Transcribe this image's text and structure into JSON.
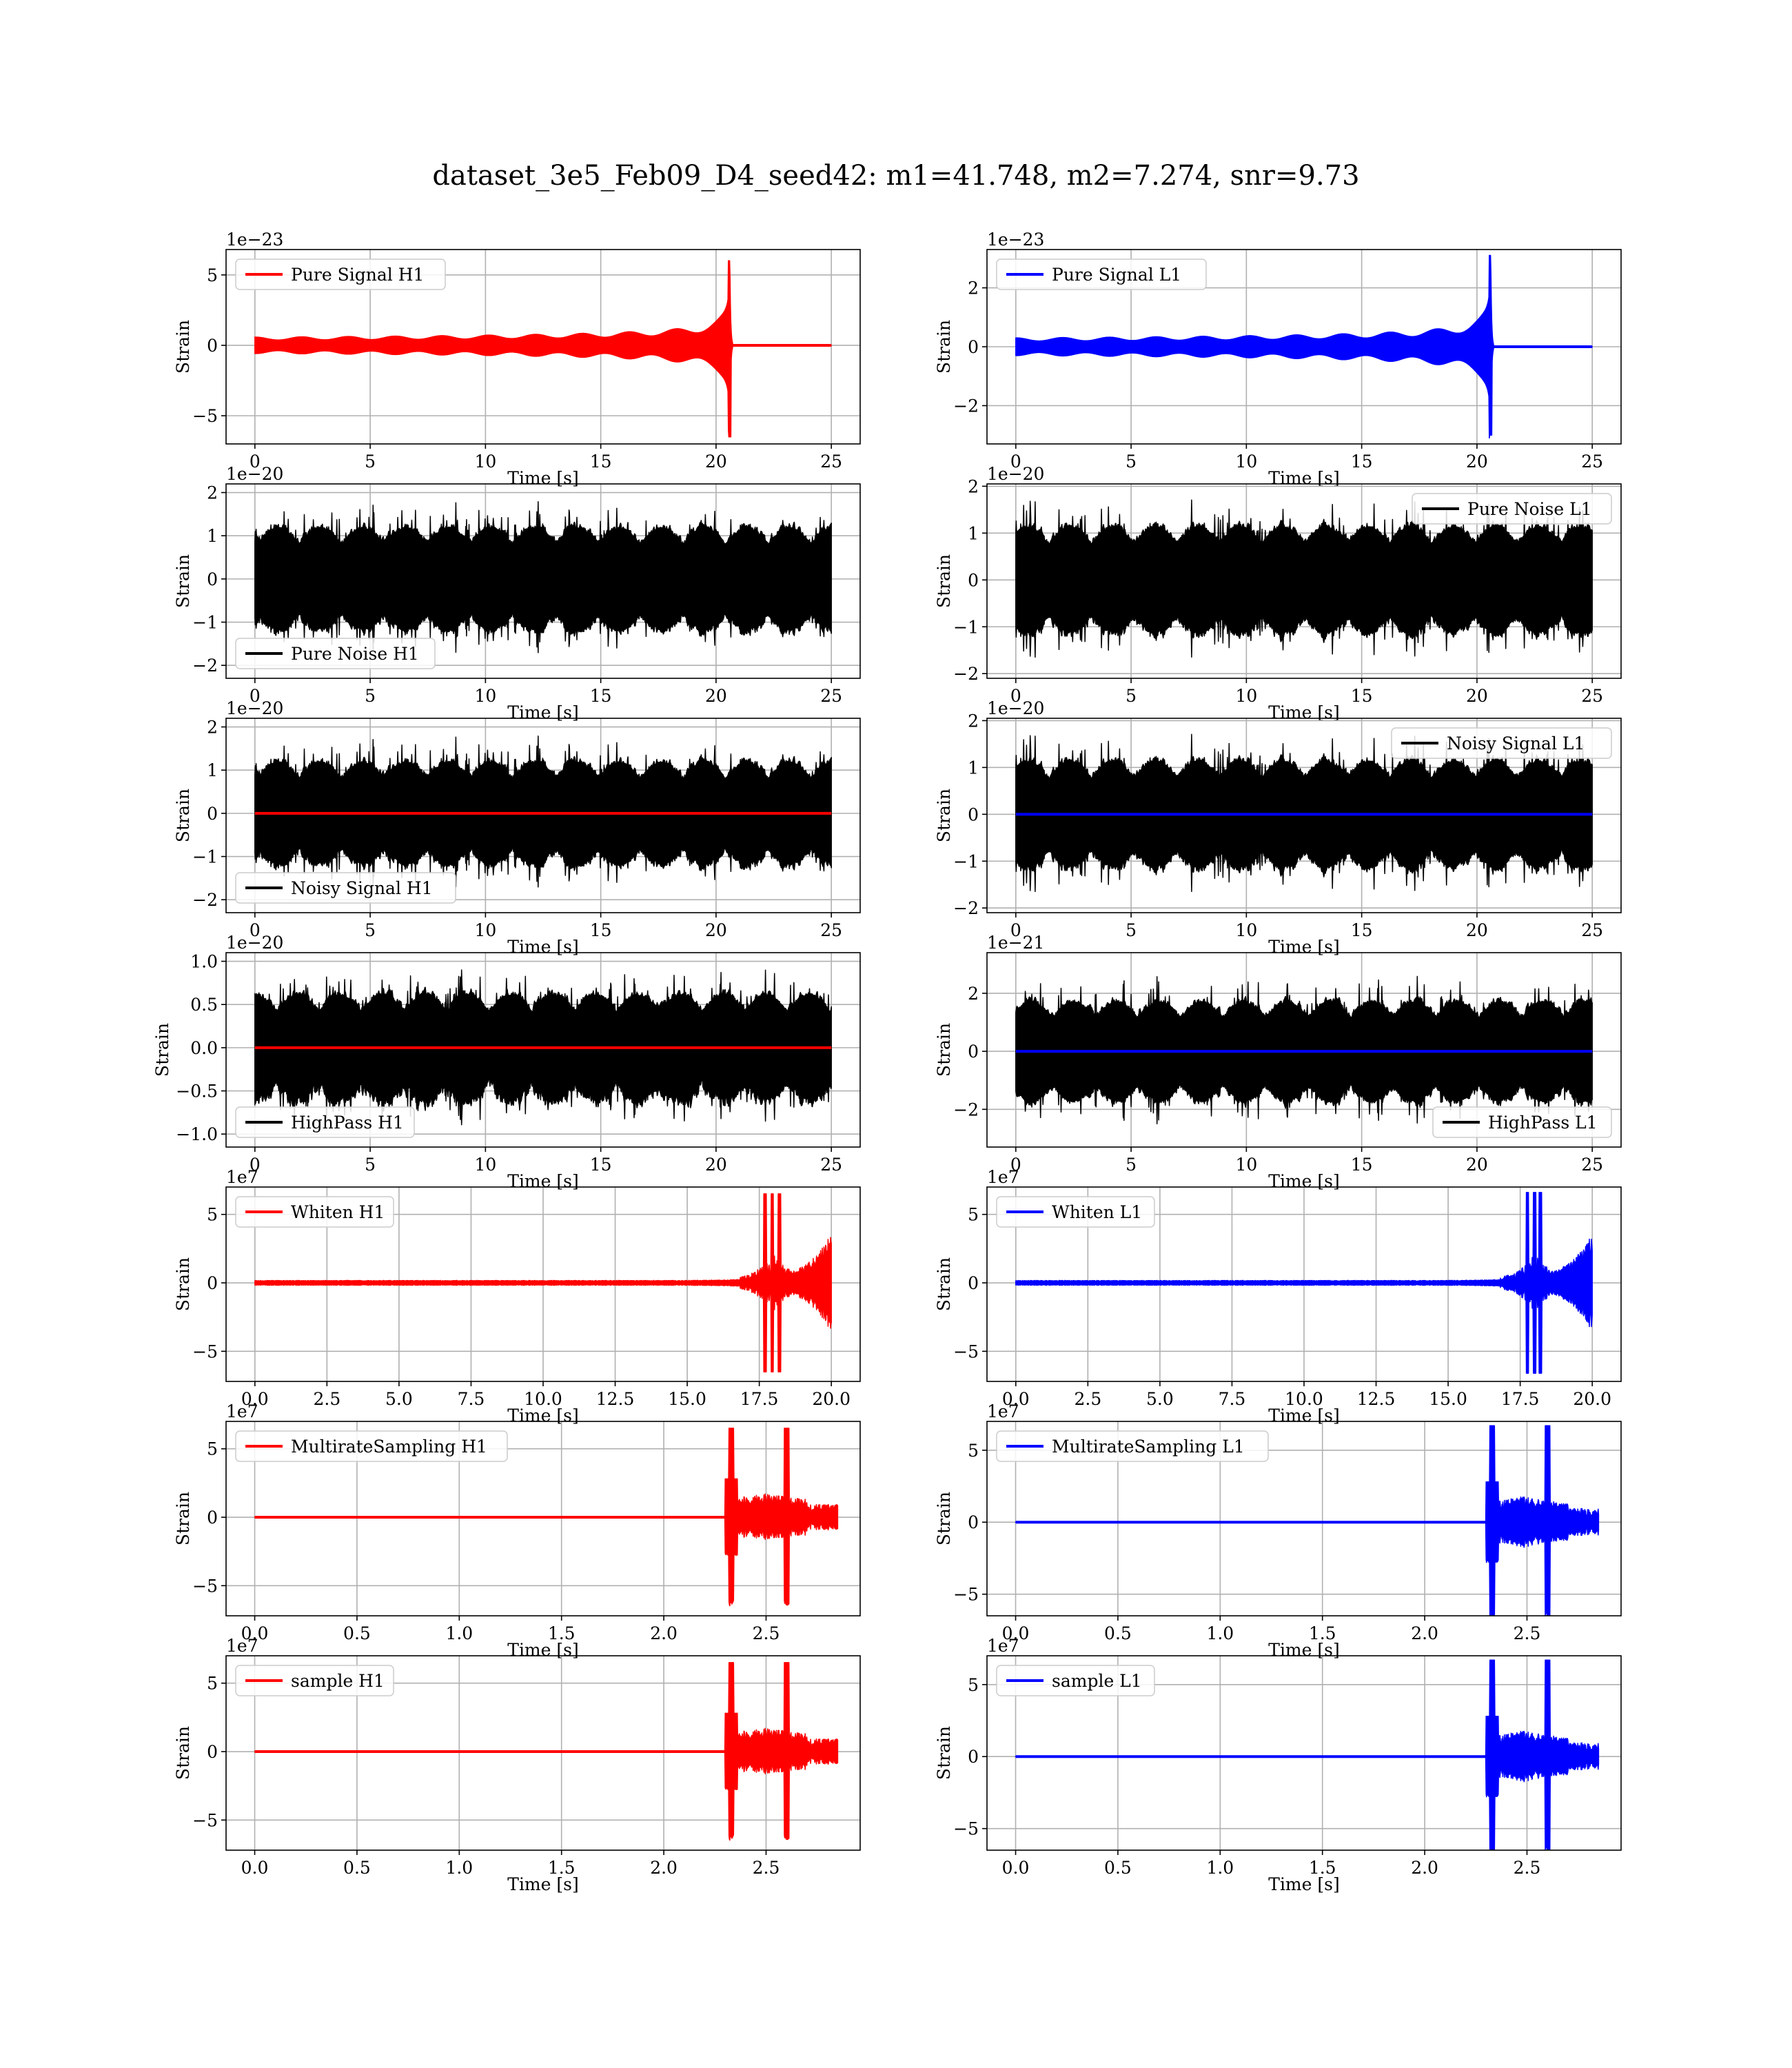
{
  "figure": {
    "title": "dataset_3e5_Feb09_D4_seed42: m1=41.748, m2=7.274, snr=9.73"
  },
  "colors": {
    "h1": "#ff0000",
    "l1": "#0000ff",
    "noise": "#000000",
    "grid": "#b0b0b0"
  },
  "chart_data": [
    {
      "id": "ps-h1",
      "type": "line",
      "row": 0,
      "col": 0,
      "xlabel": "Time [s]",
      "ylabel": "Strain",
      "exponent": "1e−23",
      "xlim": [
        -1.25,
        26.25
      ],
      "ylim": [
        -7.0,
        6.8
      ],
      "xticks": [
        0,
        5,
        10,
        15,
        20,
        25
      ],
      "xtick_labels": [
        "0",
        "5",
        "10",
        "15",
        "20",
        "25"
      ],
      "yticks": [
        -5,
        0,
        5
      ],
      "ytick_labels": [
        "−5",
        "0",
        "5"
      ],
      "legend_position": "upper-left",
      "series": [
        {
          "name": "Pure Signal H1",
          "color": "#ff0000",
          "kind": "chirp",
          "x0": 0,
          "x1": 25,
          "merger": 20.6,
          "peak": 6.0,
          "minv": -6.5
        }
      ]
    },
    {
      "id": "ps-l1",
      "type": "line",
      "row": 0,
      "col": 1,
      "xlabel": "Time [s]",
      "ylabel": "Strain",
      "exponent": "1e−23",
      "xlim": [
        -1.25,
        26.25
      ],
      "ylim": [
        -3.3,
        3.3
      ],
      "xticks": [
        0,
        5,
        10,
        15,
        20,
        25
      ],
      "xtick_labels": [
        "0",
        "5",
        "10",
        "15",
        "20",
        "25"
      ],
      "yticks": [
        -2,
        0,
        2
      ],
      "ytick_labels": [
        "−2",
        "0",
        "2"
      ],
      "legend_position": "upper-left",
      "series": [
        {
          "name": "Pure Signal L1",
          "color": "#0000ff",
          "kind": "chirp",
          "x0": 0,
          "x1": 25,
          "merger": 20.6,
          "peak": 3.1,
          "minv": -3.0
        }
      ]
    },
    {
      "id": "pn-h1",
      "type": "line",
      "row": 1,
      "col": 0,
      "xlabel": "Time [s]",
      "ylabel": "Strain",
      "exponent": "1e−20",
      "xlim": [
        -1.25,
        26.25
      ],
      "ylim": [
        -2.3,
        2.2
      ],
      "xticks": [
        0,
        5,
        10,
        15,
        20,
        25
      ],
      "xtick_labels": [
        "0",
        "5",
        "10",
        "15",
        "20",
        "25"
      ],
      "yticks": [
        -2,
        -1,
        0,
        1,
        2
      ],
      "ytick_labels": [
        "−2",
        "−1",
        "0",
        "1",
        "2"
      ],
      "legend_position": "lower-left",
      "series": [
        {
          "name": "Pure Noise H1",
          "color": "#000000",
          "kind": "noise",
          "x0": 0,
          "x1": 25,
          "amp": 1.25,
          "seed": 3
        }
      ]
    },
    {
      "id": "pn-l1",
      "type": "line",
      "row": 1,
      "col": 1,
      "xlabel": "Time [s]",
      "ylabel": "Strain",
      "exponent": "1e−20",
      "xlim": [
        -1.25,
        26.25
      ],
      "ylim": [
        -2.1,
        2.05
      ],
      "xticks": [
        0,
        5,
        10,
        15,
        20,
        25
      ],
      "xtick_labels": [
        "0",
        "5",
        "10",
        "15",
        "20",
        "25"
      ],
      "yticks": [
        -2,
        -1,
        0,
        1,
        2
      ],
      "ytick_labels": [
        "−2",
        "−1",
        "0",
        "1",
        "2"
      ],
      "legend_position": "upper-right",
      "series": [
        {
          "name": "Pure Noise L1",
          "color": "#000000",
          "kind": "noise",
          "x0": 0,
          "x1": 25,
          "amp": 1.2,
          "seed": 7
        }
      ]
    },
    {
      "id": "ns-h1",
      "type": "line",
      "row": 2,
      "col": 0,
      "xlabel": "Time [s]",
      "ylabel": "Strain",
      "exponent": "1e−20",
      "xlim": [
        -1.25,
        26.25
      ],
      "ylim": [
        -2.3,
        2.2
      ],
      "xticks": [
        0,
        5,
        10,
        15,
        20,
        25
      ],
      "xtick_labels": [
        "0",
        "5",
        "10",
        "15",
        "20",
        "25"
      ],
      "yticks": [
        -2,
        -1,
        0,
        1,
        2
      ],
      "ytick_labels": [
        "−2",
        "−1",
        "0",
        "1",
        "2"
      ],
      "legend_position": "lower-left",
      "series": [
        {
          "name": "Noisy Signal H1",
          "color": "#000000",
          "kind": "noise",
          "x0": 0,
          "x1": 25,
          "amp": 1.25,
          "seed": 3
        },
        {
          "name": "",
          "color": "#ff0000",
          "kind": "flat",
          "x0": 0,
          "x1": 25
        }
      ]
    },
    {
      "id": "ns-l1",
      "type": "line",
      "row": 2,
      "col": 1,
      "xlabel": "Time [s]",
      "ylabel": "Strain",
      "exponent": "1e−20",
      "xlim": [
        -1.25,
        26.25
      ],
      "ylim": [
        -2.1,
        2.05
      ],
      "xticks": [
        0,
        5,
        10,
        15,
        20,
        25
      ],
      "xtick_labels": [
        "0",
        "5",
        "10",
        "15",
        "20",
        "25"
      ],
      "yticks": [
        -2,
        -1,
        0,
        1,
        2
      ],
      "ytick_labels": [
        "−2",
        "−1",
        "0",
        "1",
        "2"
      ],
      "legend_position": "upper-right",
      "series": [
        {
          "name": "Noisy Signal L1",
          "color": "#000000",
          "kind": "noise",
          "x0": 0,
          "x1": 25,
          "amp": 1.2,
          "seed": 7
        },
        {
          "name": "",
          "color": "#0000ff",
          "kind": "flat",
          "x0": 0,
          "x1": 25
        }
      ]
    },
    {
      "id": "hp-h1",
      "type": "line",
      "row": 3,
      "col": 0,
      "xlabel": "Time [s]",
      "ylabel": "Strain",
      "exponent": "1e−20",
      "xlim": [
        -1.25,
        26.25
      ],
      "ylim": [
        -1.15,
        1.1
      ],
      "xticks": [
        0,
        5,
        10,
        15,
        20,
        25
      ],
      "xtick_labels": [
        "0",
        "5",
        "10",
        "15",
        "20",
        "25"
      ],
      "yticks": [
        -1.0,
        -0.5,
        0.0,
        0.5,
        1.0
      ],
      "ytick_labels": [
        "−1.0",
        "−0.5",
        "0.0",
        "0.5",
        "1.0"
      ],
      "legend_position": "lower-left",
      "series": [
        {
          "name": "HighPass H1",
          "color": "#000000",
          "kind": "noise",
          "x0": 0,
          "x1": 25,
          "amp": 0.65,
          "seed": 11
        },
        {
          "name": "",
          "color": "#ff0000",
          "kind": "flat",
          "x0": 0,
          "x1": 25
        }
      ]
    },
    {
      "id": "hp-l1",
      "type": "line",
      "row": 3,
      "col": 1,
      "xlabel": "Time [s]",
      "ylabel": "Strain",
      "exponent": "1e−21",
      "xlim": [
        -1.25,
        26.25
      ],
      "ylim": [
        -3.3,
        3.4
      ],
      "xticks": [
        0,
        5,
        10,
        15,
        20,
        25
      ],
      "xtick_labels": [
        "0",
        "5",
        "10",
        "15",
        "20",
        "25"
      ],
      "yticks": [
        -2,
        0,
        2
      ],
      "ytick_labels": [
        "−2",
        "0",
        "2"
      ],
      "legend_position": "lower-right",
      "series": [
        {
          "name": "HighPass L1",
          "color": "#000000",
          "kind": "noise",
          "x0": 0,
          "x1": 25,
          "amp": 1.8,
          "seed": 13
        },
        {
          "name": "",
          "color": "#0000ff",
          "kind": "flat",
          "x0": 0,
          "x1": 25
        }
      ]
    },
    {
      "id": "wh-h1",
      "type": "line",
      "row": 4,
      "col": 0,
      "xlabel": "Time [s]",
      "ylabel": "Strain",
      "exponent": "1e7",
      "xlim": [
        -1.0,
        21.0
      ],
      "ylim": [
        -7.2,
        7.0
      ],
      "xticks": [
        0,
        2.5,
        5,
        7.5,
        10,
        12.5,
        15,
        17.5,
        20
      ],
      "xtick_labels": [
        "0.0",
        "2.5",
        "5.0",
        "7.5",
        "10.0",
        "12.5",
        "15.0",
        "17.5",
        "20.0"
      ],
      "yticks": [
        -5,
        0,
        5
      ],
      "ytick_labels": [
        "−5",
        "0",
        "5"
      ],
      "legend_position": "upper-left",
      "series": [
        {
          "name": "Whiten H1",
          "color": "#ff0000",
          "kind": "whiten",
          "x0": 0,
          "x1": 20,
          "peaks": [
            17.7,
            17.95,
            18.2
          ],
          "peak": 6.5,
          "seed": 17
        }
      ]
    },
    {
      "id": "wh-l1",
      "type": "line",
      "row": 4,
      "col": 1,
      "xlabel": "Time [s]",
      "ylabel": "Strain",
      "exponent": "1e7",
      "xlim": [
        -1.0,
        21.0
      ],
      "ylim": [
        -7.2,
        7.0
      ],
      "xticks": [
        0,
        2.5,
        5,
        7.5,
        10,
        12.5,
        15,
        17.5,
        20
      ],
      "xtick_labels": [
        "0.0",
        "2.5",
        "5.0",
        "7.5",
        "10.0",
        "12.5",
        "15.0",
        "17.5",
        "20.0"
      ],
      "yticks": [
        -5,
        0,
        5
      ],
      "ytick_labels": [
        "−5",
        "0",
        "5"
      ],
      "legend_position": "upper-left",
      "series": [
        {
          "name": "Whiten L1",
          "color": "#0000ff",
          "kind": "whiten",
          "x0": 0,
          "x1": 20,
          "peaks": [
            17.75,
            18.0,
            18.2
          ],
          "peak": 6.6,
          "seed": 19
        }
      ]
    },
    {
      "id": "ms-h1",
      "type": "line",
      "row": 5,
      "col": 0,
      "xlabel": "Time [s]",
      "ylabel": "Strain",
      "exponent": "1e7",
      "xlim": [
        -0.14,
        2.96
      ],
      "ylim": [
        -7.2,
        7.0
      ],
      "xticks": [
        0,
        0.5,
        1.0,
        1.5,
        2.0,
        2.5
      ],
      "xtick_labels": [
        "0.0",
        "0.5",
        "1.0",
        "1.5",
        "2.0",
        "2.5"
      ],
      "yticks": [
        -5,
        0,
        5
      ],
      "ytick_labels": [
        "−5",
        "0",
        "5"
      ],
      "legend_position": "upper-left",
      "series": [
        {
          "name": "MultirateSampling H1",
          "color": "#ff0000",
          "kind": "multirate",
          "x0": 0,
          "x1": 2.85,
          "burst0": 2.3,
          "peaks": [
            2.33,
            2.6
          ],
          "peak": 6.5,
          "seed": 23
        }
      ]
    },
    {
      "id": "ms-l1",
      "type": "line",
      "row": 5,
      "col": 1,
      "xlabel": "Time [s]",
      "ylabel": "Strain",
      "exponent": "1e7",
      "xlim": [
        -0.14,
        2.96
      ],
      "ylim": [
        -6.5,
        7.0
      ],
      "xticks": [
        0,
        0.5,
        1.0,
        1.5,
        2.0,
        2.5
      ],
      "xtick_labels": [
        "0.0",
        "0.5",
        "1.0",
        "1.5",
        "2.0",
        "2.5"
      ],
      "yticks": [
        -5,
        0,
        5
      ],
      "ytick_labels": [
        "−5",
        "0",
        "5"
      ],
      "legend_position": "upper-left",
      "series": [
        {
          "name": "MultirateSampling L1",
          "color": "#0000ff",
          "kind": "multirate",
          "x0": 0,
          "x1": 2.85,
          "burst0": 2.3,
          "peaks": [
            2.33,
            2.6
          ],
          "peak": 6.7,
          "seed": 29
        }
      ]
    },
    {
      "id": "sa-h1",
      "type": "line",
      "row": 6,
      "col": 0,
      "xlabel": "Time [s]",
      "ylabel": "Strain",
      "exponent": "1e7",
      "xlim": [
        -0.14,
        2.96
      ],
      "ylim": [
        -7.2,
        7.0
      ],
      "xticks": [
        0,
        0.5,
        1.0,
        1.5,
        2.0,
        2.5
      ],
      "xtick_labels": [
        "0.0",
        "0.5",
        "1.0",
        "1.5",
        "2.0",
        "2.5"
      ],
      "yticks": [
        -5,
        0,
        5
      ],
      "ytick_labels": [
        "−5",
        "0",
        "5"
      ],
      "legend_position": "upper-left",
      "series": [
        {
          "name": "sample H1",
          "color": "#ff0000",
          "kind": "multirate",
          "x0": 0,
          "x1": 2.85,
          "burst0": 2.3,
          "peaks": [
            2.33,
            2.6
          ],
          "peak": 6.5,
          "seed": 23
        }
      ]
    },
    {
      "id": "sa-l1",
      "type": "line",
      "row": 6,
      "col": 1,
      "xlabel": "Time [s]",
      "ylabel": "Strain",
      "exponent": "1e7",
      "xlim": [
        -0.14,
        2.96
      ],
      "ylim": [
        -6.5,
        7.0
      ],
      "xticks": [
        0,
        0.5,
        1.0,
        1.5,
        2.0,
        2.5
      ],
      "xtick_labels": [
        "0.0",
        "0.5",
        "1.0",
        "1.5",
        "2.0",
        "2.5"
      ],
      "yticks": [
        -5,
        0,
        5
      ],
      "ytick_labels": [
        "−5",
        "0",
        "5"
      ],
      "legend_position": "upper-left",
      "series": [
        {
          "name": "sample L1",
          "color": "#0000ff",
          "kind": "multirate",
          "x0": 0,
          "x1": 2.85,
          "burst0": 2.3,
          "peaks": [
            2.33,
            2.6
          ],
          "peak": 6.7,
          "seed": 29
        }
      ]
    }
  ]
}
